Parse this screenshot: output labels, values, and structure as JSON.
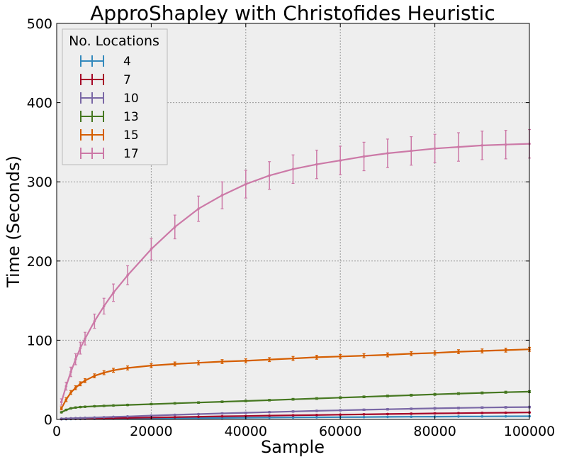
{
  "chart_data": {
    "type": "line",
    "title": "ApproShapley with Christofides Heuristic",
    "xlabel": "Sample",
    "ylabel": "Time (Seconds)",
    "xlim": [
      0,
      100000
    ],
    "ylim": [
      0,
      500
    ],
    "xticks": [
      0,
      20000,
      40000,
      60000,
      80000,
      100000
    ],
    "yticks": [
      0,
      100,
      200,
      300,
      400,
      500
    ],
    "grid": true,
    "error_bars": true,
    "legend": {
      "title": "No. Locations",
      "placement": "top-left"
    },
    "x": [
      1000,
      2000,
      3000,
      4000,
      5000,
      6000,
      8000,
      10000,
      12000,
      15000,
      20000,
      25000,
      30000,
      35000,
      40000,
      45000,
      50000,
      55000,
      60000,
      65000,
      70000,
      75000,
      80000,
      85000,
      90000,
      95000,
      100000
    ],
    "series": [
      {
        "name": "4",
        "color": "#348ABD",
        "values": [
          0.3,
          0.4,
          0.5,
          0.6,
          0.6,
          0.7,
          0.8,
          0.9,
          1.0,
          1.1,
          1.3,
          1.5,
          1.7,
          1.9,
          2.1,
          2.3,
          2.5,
          2.7,
          2.9,
          3.0,
          3.2,
          3.4,
          3.5,
          3.7,
          3.8,
          3.9,
          4.0
        ],
        "error": [
          0.1,
          0.1,
          0.1,
          0.1,
          0.1,
          0.1,
          0.1,
          0.1,
          0.1,
          0.1,
          0.2,
          0.2,
          0.2,
          0.2,
          0.2,
          0.3,
          0.3,
          0.3,
          0.3,
          0.3,
          0.3,
          0.4,
          0.4,
          0.4,
          0.4,
          0.4,
          0.4
        ]
      },
      {
        "name": "7",
        "color": "#A60628",
        "values": [
          0.5,
          0.6,
          0.7,
          0.8,
          0.9,
          1.0,
          1.2,
          1.4,
          1.6,
          1.9,
          2.4,
          2.9,
          3.4,
          3.9,
          4.3,
          4.8,
          5.2,
          5.6,
          6.0,
          6.4,
          6.8,
          7.2,
          7.6,
          7.9,
          8.2,
          8.5,
          8.8
        ],
        "error": [
          0.2,
          0.2,
          0.2,
          0.2,
          0.2,
          0.2,
          0.2,
          0.2,
          0.3,
          0.3,
          0.3,
          0.3,
          0.4,
          0.4,
          0.4,
          0.4,
          0.5,
          0.5,
          0.5,
          0.5,
          0.6,
          0.6,
          0.6,
          0.6,
          0.6,
          0.6,
          0.6
        ]
      },
      {
        "name": "10",
        "color": "#7A68A6",
        "values": [
          1.0,
          1.2,
          1.4,
          1.6,
          1.8,
          2.0,
          2.4,
          2.8,
          3.2,
          3.8,
          4.8,
          5.8,
          6.7,
          7.6,
          8.4,
          9.2,
          10.0,
          10.8,
          11.5,
          12.2,
          12.8,
          13.4,
          14.0,
          14.5,
          15.0,
          15.3,
          15.6
        ],
        "error": [
          0.3,
          0.3,
          0.3,
          0.3,
          0.3,
          0.4,
          0.4,
          0.4,
          0.4,
          0.5,
          0.5,
          0.6,
          0.6,
          0.7,
          0.7,
          0.7,
          0.8,
          0.8,
          0.8,
          0.9,
          0.9,
          0.9,
          1.0,
          1.0,
          1.0,
          1.0,
          1.0
        ]
      },
      {
        "name": "13",
        "color": "#467821",
        "values": [
          9.0,
          12.0,
          14.0,
          15.0,
          15.6,
          16.0,
          16.6,
          17.1,
          17.6,
          18.3,
          19.3,
          20.3,
          21.3,
          22.3,
          23.3,
          24.3,
          25.4,
          26.4,
          27.5,
          28.5,
          29.6,
          30.6,
          31.6,
          32.6,
          33.5,
          34.3,
          35.0
        ],
        "error": [
          0.8,
          0.8,
          0.8,
          0.8,
          0.8,
          0.8,
          0.8,
          0.8,
          0.8,
          0.9,
          0.9,
          0.9,
          1.0,
          1.0,
          1.0,
          1.0,
          1.1,
          1.1,
          1.1,
          1.1,
          1.2,
          1.2,
          1.2,
          1.2,
          1.2,
          1.3,
          1.3
        ]
      },
      {
        "name": "15",
        "color": "#D55E00",
        "values": [
          14.0,
          25.0,
          34.0,
          40.0,
          45.0,
          49.0,
          55.0,
          59.0,
          62.0,
          65.0,
          68.0,
          70.0,
          71.5,
          73.0,
          74.0,
          75.5,
          77.0,
          78.5,
          79.5,
          80.5,
          81.5,
          83.0,
          84.0,
          85.5,
          86.5,
          87.5,
          88.5
        ],
        "error": [
          2.0,
          2.5,
          2.5,
          2.5,
          2.5,
          2.5,
          2.5,
          2.5,
          2.5,
          2.5,
          2.5,
          2.5,
          2.5,
          2.5,
          2.5,
          2.5,
          2.5,
          2.5,
          2.5,
          2.5,
          2.5,
          2.5,
          2.5,
          2.5,
          2.5,
          2.5,
          2.5
        ]
      },
      {
        "name": "17",
        "color": "#CC79A7",
        "values": [
          22.0,
          42.0,
          60.0,
          76.0,
          90.0,
          102.0,
          124.0,
          143.0,
          160.0,
          182.0,
          215.0,
          243.0,
          266.0,
          283.0,
          297.0,
          308.0,
          316.0,
          322.0,
          327.0,
          332.0,
          336.0,
          339.0,
          342.0,
          344.0,
          346.0,
          347.0,
          348.0
        ],
        "error": [
          4.0,
          5.0,
          6.0,
          7.0,
          7.5,
          8.0,
          9.0,
          10.0,
          11.0,
          12.0,
          13.5,
          15.0,
          16.0,
          17.0,
          17.5,
          17.5,
          18.0,
          18.0,
          18.0,
          18.0,
          18.0,
          18.0,
          18.0,
          18.0,
          18.0,
          18.0,
          18.0
        ]
      }
    ]
  }
}
